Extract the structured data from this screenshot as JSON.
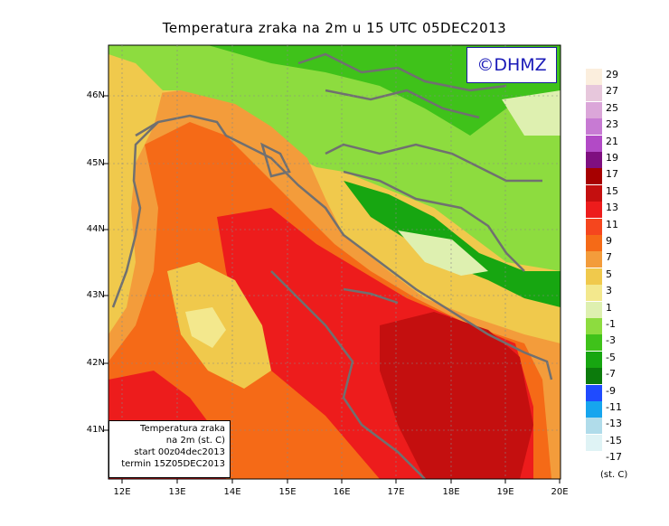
{
  "title": "Temperatura zraka na 2m u 15 UTC 05DEC2013",
  "logo": "©DHMZ",
  "info_box": {
    "line1": "Temperatura zraka",
    "line2": "na 2m (st. C)",
    "line3": "start 00z04dec2013",
    "line4": "termin 15Z05DEC2013"
  },
  "axes": {
    "y_ticks": [
      "46N",
      "45N",
      "44N",
      "43N",
      "42N",
      "41N"
    ],
    "x_ticks": [
      "12E",
      "13E",
      "14E",
      "15E",
      "16E",
      "17E",
      "18E",
      "19E",
      "20E"
    ]
  },
  "legend": {
    "units": "(st. C)",
    "labels": [
      "29",
      "27",
      "25",
      "23",
      "21",
      "19",
      "17",
      "15",
      "13",
      "11",
      "9",
      "7",
      "5",
      "3",
      "1",
      "-1",
      "-3",
      "-5",
      "-7",
      "-9",
      "-11",
      "-13",
      "-15",
      "-17"
    ],
    "colors": [
      "#fbeedd",
      "#e7c7dc",
      "#dba6d9",
      "#c77ad3",
      "#b24ac6",
      "#7f0f80",
      "#a60000",
      "#c40f0f",
      "#ed1c1c",
      "#f5461e",
      "#f56a17",
      "#f39c3b",
      "#f0c94c",
      "#f3e88d",
      "#def0b0",
      "#8ddc3f",
      "#3fc21a",
      "#17a611",
      "#0c7b0c",
      "#1f4bff",
      "#16a5ee",
      "#b0dcea",
      "#dff3f5",
      "#ffffff"
    ]
  },
  "colors": {
    "sea_warm": "#e31414",
    "sea_hot": "#c20a0a",
    "coast_outline": "#707070",
    "logo_text": "#1a1ab8"
  }
}
